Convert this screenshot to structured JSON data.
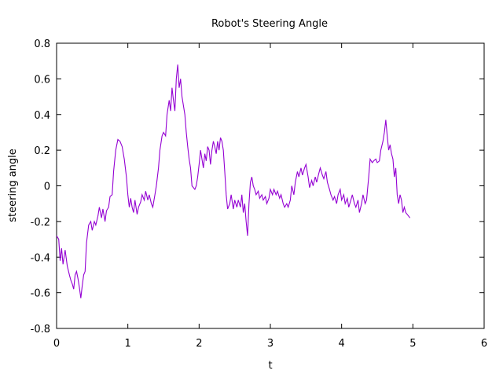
{
  "chart_data": {
    "type": "line",
    "title": "Robot's Steering Angle",
    "xlabel": "t",
    "ylabel": "steering angle",
    "xlim": [
      0,
      6
    ],
    "ylim": [
      -0.8,
      0.8
    ],
    "xticks": [
      0,
      1,
      2,
      3,
      4,
      5,
      6
    ],
    "yticks": [
      -0.8,
      -0.6,
      -0.4,
      -0.2,
      0,
      0.2,
      0.4,
      0.6,
      0.8
    ],
    "series": [
      {
        "color": "#9400d3",
        "points": [
          [
            0.0,
            -0.28
          ],
          [
            0.03,
            -0.3
          ],
          [
            0.05,
            -0.42
          ],
          [
            0.07,
            -0.35
          ],
          [
            0.09,
            -0.44
          ],
          [
            0.12,
            -0.36
          ],
          [
            0.15,
            -0.45
          ],
          [
            0.18,
            -0.5
          ],
          [
            0.2,
            -0.53
          ],
          [
            0.22,
            -0.55
          ],
          [
            0.24,
            -0.58
          ],
          [
            0.26,
            -0.5
          ],
          [
            0.28,
            -0.48
          ],
          [
            0.3,
            -0.52
          ],
          [
            0.32,
            -0.57
          ],
          [
            0.34,
            -0.63
          ],
          [
            0.36,
            -0.56
          ],
          [
            0.38,
            -0.5
          ],
          [
            0.4,
            -0.48
          ],
          [
            0.42,
            -0.32
          ],
          [
            0.45,
            -0.22
          ],
          [
            0.48,
            -0.2
          ],
          [
            0.5,
            -0.25
          ],
          [
            0.53,
            -0.2
          ],
          [
            0.55,
            -0.22
          ],
          [
            0.58,
            -0.17
          ],
          [
            0.6,
            -0.12
          ],
          [
            0.63,
            -0.18
          ],
          [
            0.65,
            -0.13
          ],
          [
            0.68,
            -0.2
          ],
          [
            0.7,
            -0.14
          ],
          [
            0.73,
            -0.12
          ],
          [
            0.75,
            -0.06
          ],
          [
            0.78,
            -0.05
          ],
          [
            0.8,
            0.08
          ],
          [
            0.83,
            0.2
          ],
          [
            0.86,
            0.26
          ],
          [
            0.89,
            0.25
          ],
          [
            0.92,
            0.22
          ],
          [
            0.95,
            0.15
          ],
          [
            0.98,
            0.05
          ],
          [
            1.0,
            -0.05
          ],
          [
            1.02,
            -0.12
          ],
          [
            1.04,
            -0.07
          ],
          [
            1.06,
            -0.12
          ],
          [
            1.08,
            -0.15
          ],
          [
            1.1,
            -0.08
          ],
          [
            1.13,
            -0.16
          ],
          [
            1.15,
            -0.12
          ],
          [
            1.18,
            -0.09
          ],
          [
            1.2,
            -0.05
          ],
          [
            1.23,
            -0.08
          ],
          [
            1.25,
            -0.03
          ],
          [
            1.28,
            -0.08
          ],
          [
            1.3,
            -0.05
          ],
          [
            1.33,
            -0.1
          ],
          [
            1.35,
            -0.12
          ],
          [
            1.38,
            -0.05
          ],
          [
            1.4,
            0.0
          ],
          [
            1.43,
            0.1
          ],
          [
            1.45,
            0.2
          ],
          [
            1.48,
            0.28
          ],
          [
            1.5,
            0.3
          ],
          [
            1.53,
            0.28
          ],
          [
            1.55,
            0.4
          ],
          [
            1.58,
            0.48
          ],
          [
            1.6,
            0.42
          ],
          [
            1.62,
            0.55
          ],
          [
            1.64,
            0.48
          ],
          [
            1.66,
            0.42
          ],
          [
            1.68,
            0.6
          ],
          [
            1.7,
            0.68
          ],
          [
            1.72,
            0.55
          ],
          [
            1.74,
            0.6
          ],
          [
            1.76,
            0.5
          ],
          [
            1.78,
            0.45
          ],
          [
            1.8,
            0.4
          ],
          [
            1.82,
            0.3
          ],
          [
            1.84,
            0.22
          ],
          [
            1.86,
            0.15
          ],
          [
            1.88,
            0.1
          ],
          [
            1.9,
            0.0
          ],
          [
            1.92,
            -0.01
          ],
          [
            1.94,
            -0.02
          ],
          [
            1.96,
            0.0
          ],
          [
            1.98,
            0.05
          ],
          [
            2.0,
            0.12
          ],
          [
            2.02,
            0.2
          ],
          [
            2.04,
            0.15
          ],
          [
            2.06,
            0.1
          ],
          [
            2.08,
            0.18
          ],
          [
            2.1,
            0.14
          ],
          [
            2.12,
            0.22
          ],
          [
            2.14,
            0.2
          ],
          [
            2.16,
            0.12
          ],
          [
            2.18,
            0.2
          ],
          [
            2.2,
            0.25
          ],
          [
            2.22,
            0.22
          ],
          [
            2.24,
            0.18
          ],
          [
            2.26,
            0.25
          ],
          [
            2.28,
            0.2
          ],
          [
            2.3,
            0.27
          ],
          [
            2.32,
            0.25
          ],
          [
            2.34,
            0.2
          ],
          [
            2.36,
            0.08
          ],
          [
            2.38,
            -0.05
          ],
          [
            2.4,
            -0.13
          ],
          [
            2.43,
            -0.1
          ],
          [
            2.45,
            -0.05
          ],
          [
            2.48,
            -0.13
          ],
          [
            2.5,
            -0.08
          ],
          [
            2.53,
            -0.12
          ],
          [
            2.55,
            -0.08
          ],
          [
            2.58,
            -0.12
          ],
          [
            2.6,
            -0.05
          ],
          [
            2.62,
            -0.15
          ],
          [
            2.64,
            -0.1
          ],
          [
            2.66,
            -0.2
          ],
          [
            2.68,
            -0.28
          ],
          [
            2.7,
            -0.1
          ],
          [
            2.72,
            0.02
          ],
          [
            2.74,
            0.05
          ],
          [
            2.76,
            0.0
          ],
          [
            2.78,
            -0.02
          ],
          [
            2.8,
            -0.05
          ],
          [
            2.83,
            -0.03
          ],
          [
            2.85,
            -0.07
          ],
          [
            2.88,
            -0.05
          ],
          [
            2.9,
            -0.08
          ],
          [
            2.93,
            -0.06
          ],
          [
            2.95,
            -0.1
          ],
          [
            2.98,
            -0.07
          ],
          [
            3.0,
            -0.02
          ],
          [
            3.03,
            -0.05
          ],
          [
            3.05,
            -0.02
          ],
          [
            3.08,
            -0.05
          ],
          [
            3.1,
            -0.03
          ],
          [
            3.13,
            -0.07
          ],
          [
            3.15,
            -0.05
          ],
          [
            3.18,
            -0.1
          ],
          [
            3.2,
            -0.12
          ],
          [
            3.23,
            -0.1
          ],
          [
            3.25,
            -0.12
          ],
          [
            3.28,
            -0.08
          ],
          [
            3.3,
            0.0
          ],
          [
            3.33,
            -0.05
          ],
          [
            3.35,
            0.02
          ],
          [
            3.38,
            0.08
          ],
          [
            3.4,
            0.05
          ],
          [
            3.43,
            0.1
          ],
          [
            3.45,
            0.06
          ],
          [
            3.48,
            0.1
          ],
          [
            3.5,
            0.12
          ],
          [
            3.53,
            0.05
          ],
          [
            3.55,
            -0.01
          ],
          [
            3.58,
            0.03
          ],
          [
            3.6,
            0.0
          ],
          [
            3.63,
            0.05
          ],
          [
            3.65,
            0.02
          ],
          [
            3.68,
            0.07
          ],
          [
            3.7,
            0.1
          ],
          [
            3.73,
            0.06
          ],
          [
            3.75,
            0.04
          ],
          [
            3.78,
            0.08
          ],
          [
            3.8,
            0.02
          ],
          [
            3.83,
            -0.02
          ],
          [
            3.85,
            -0.05
          ],
          [
            3.88,
            -0.08
          ],
          [
            3.9,
            -0.06
          ],
          [
            3.93,
            -0.1
          ],
          [
            3.95,
            -0.05
          ],
          [
            3.98,
            -0.02
          ],
          [
            4.0,
            -0.08
          ],
          [
            4.03,
            -0.05
          ],
          [
            4.05,
            -0.1
          ],
          [
            4.08,
            -0.07
          ],
          [
            4.1,
            -0.12
          ],
          [
            4.13,
            -0.08
          ],
          [
            4.15,
            -0.05
          ],
          [
            4.18,
            -0.1
          ],
          [
            4.2,
            -0.12
          ],
          [
            4.23,
            -0.08
          ],
          [
            4.25,
            -0.15
          ],
          [
            4.28,
            -0.1
          ],
          [
            4.3,
            -0.05
          ],
          [
            4.33,
            -0.1
          ],
          [
            4.35,
            -0.08
          ],
          [
            4.38,
            0.05
          ],
          [
            4.4,
            0.15
          ],
          [
            4.43,
            0.13
          ],
          [
            4.45,
            0.14
          ],
          [
            4.48,
            0.15
          ],
          [
            4.5,
            0.13
          ],
          [
            4.53,
            0.14
          ],
          [
            4.55,
            0.2
          ],
          [
            4.58,
            0.25
          ],
          [
            4.6,
            0.3
          ],
          [
            4.62,
            0.37
          ],
          [
            4.64,
            0.28
          ],
          [
            4.66,
            0.2
          ],
          [
            4.68,
            0.23
          ],
          [
            4.7,
            0.18
          ],
          [
            4.72,
            0.15
          ],
          [
            4.74,
            0.05
          ],
          [
            4.76,
            0.1
          ],
          [
            4.78,
            -0.05
          ],
          [
            4.8,
            -0.1
          ],
          [
            4.82,
            -0.05
          ],
          [
            4.84,
            -0.08
          ],
          [
            4.86,
            -0.15
          ],
          [
            4.88,
            -0.12
          ],
          [
            4.9,
            -0.15
          ],
          [
            4.92,
            -0.16
          ],
          [
            4.94,
            -0.17
          ],
          [
            4.96,
            -0.18
          ]
        ]
      }
    ]
  }
}
